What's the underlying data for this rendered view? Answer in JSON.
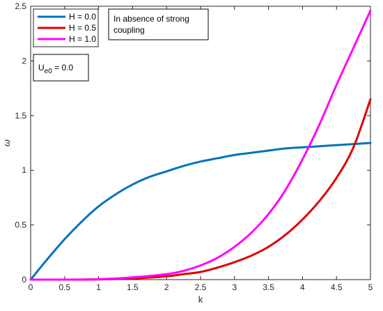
{
  "chart_data": {
    "type": "line",
    "title": "",
    "xlabel": "k",
    "ylabel": "ω",
    "xlim": [
      0,
      5
    ],
    "ylim": [
      0,
      2.5
    ],
    "xticks": [
      0,
      0.5,
      1,
      1.5,
      2,
      2.5,
      3,
      3.5,
      4,
      4.5,
      5
    ],
    "yticks": [
      0,
      0.5,
      1,
      1.5,
      2,
      2.5
    ],
    "xtick_labels": [
      "0",
      "0.5",
      "1",
      "1.5",
      "2",
      "2.5",
      "3",
      "3.5",
      "4",
      "4.5",
      "5"
    ],
    "ytick_labels": [
      "0",
      "0.5",
      "1",
      "1.5",
      "2",
      "2.5"
    ],
    "grid": false,
    "legend_position": "top-left",
    "series": [
      {
        "name": "H = 0.0",
        "color": "#0072BD",
        "x": [
          0,
          0.25,
          0.5,
          0.75,
          1,
          1.25,
          1.5,
          1.75,
          2,
          2.25,
          2.5,
          2.75,
          3,
          3.25,
          3.5,
          3.75,
          4,
          4.25,
          4.5,
          4.75,
          5
        ],
        "y": [
          0,
          0.19,
          0.37,
          0.53,
          0.67,
          0.78,
          0.87,
          0.94,
          0.99,
          1.04,
          1.08,
          1.11,
          1.14,
          1.16,
          1.18,
          1.2,
          1.21,
          1.22,
          1.23,
          1.24,
          1.25
        ]
      },
      {
        "name": "H = 0.5",
        "color": "#E00000",
        "x": [
          0,
          0.5,
          1,
          1.5,
          2,
          2.25,
          2.5,
          2.75,
          3,
          3.25,
          3.5,
          3.75,
          4,
          4.25,
          4.5,
          4.75,
          5
        ],
        "y": [
          0,
          0.0,
          0.002,
          0.01,
          0.03,
          0.05,
          0.07,
          0.11,
          0.16,
          0.22,
          0.3,
          0.41,
          0.55,
          0.72,
          0.93,
          1.21,
          1.65
        ]
      },
      {
        "name": "H = 1.0",
        "color": "#FF00FF",
        "x": [
          0,
          0.5,
          1,
          1.5,
          2,
          2.25,
          2.5,
          2.75,
          3,
          3.25,
          3.5,
          3.75,
          4,
          4.25,
          4.5,
          4.75,
          5
        ],
        "y": [
          0,
          0.0,
          0.004,
          0.02,
          0.05,
          0.08,
          0.13,
          0.2,
          0.3,
          0.43,
          0.6,
          0.82,
          1.1,
          1.42,
          1.78,
          2.12,
          2.46
        ]
      }
    ],
    "annotations": [
      {
        "text": "In absence of strong coupling"
      },
      {
        "text": "U_e0 = 0.0"
      }
    ]
  },
  "annotation_lines": {
    "coupling_line1": "In absence of strong",
    "coupling_line2": "coupling",
    "param_symbol": "U",
    "param_subscript": "e0",
    "param_value": " = 0.0"
  }
}
